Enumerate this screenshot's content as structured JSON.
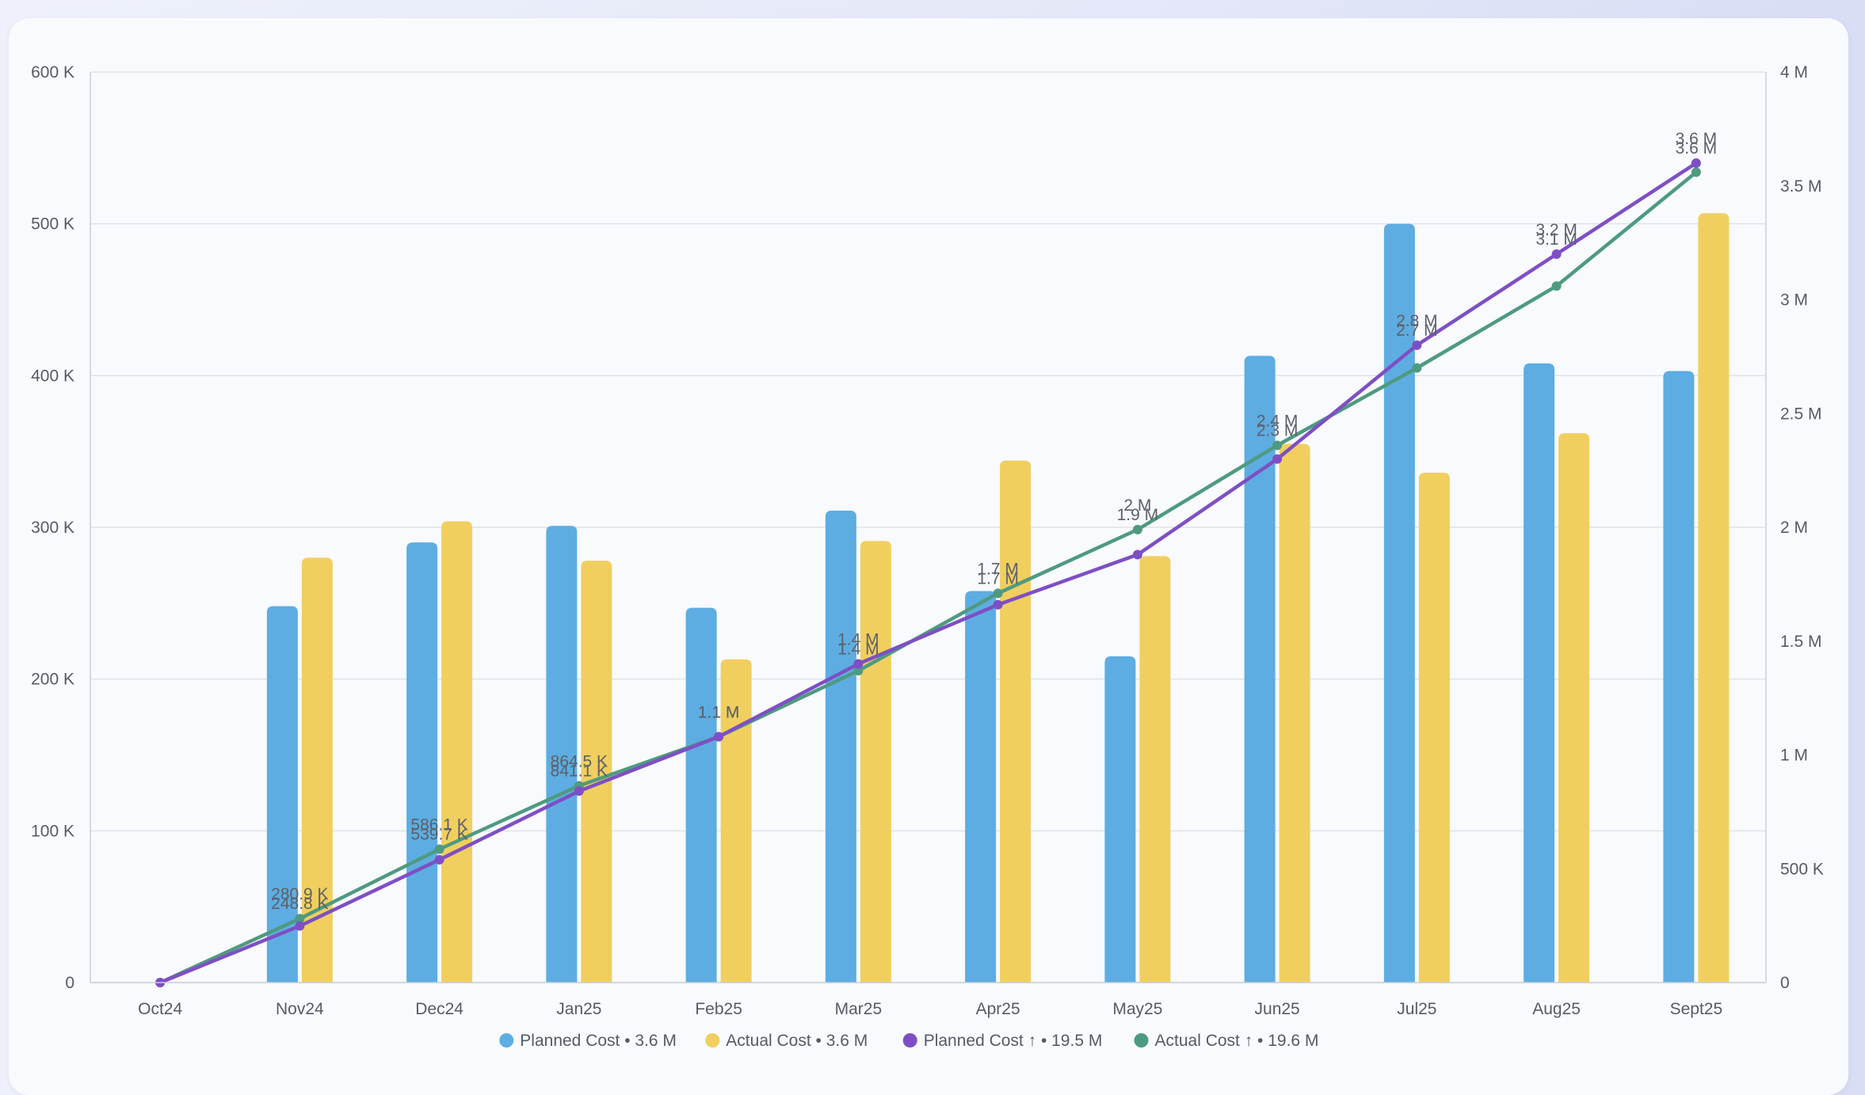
{
  "chart_data": {
    "type": "bar+line",
    "categories": [
      "Oct24",
      "Nov24",
      "Dec24",
      "Jan25",
      "Feb25",
      "Mar25",
      "Apr25",
      "May25",
      "Jun25",
      "Jul25",
      "Aug25",
      "Sept25"
    ],
    "left_axis": {
      "ylim": [
        0,
        600000
      ],
      "ticks": [
        "0",
        "100 K",
        "200 K",
        "300 K",
        "400 K",
        "500 K",
        "600 K"
      ]
    },
    "right_axis": {
      "ylim": [
        0,
        4000000
      ],
      "ticks": [
        "0",
        "500 K",
        "1 M",
        "1.5 M",
        "2 M",
        "2.5 M",
        "3 M",
        "3.5 M",
        "4 M"
      ]
    },
    "grid": true,
    "legend_position": "bottom-center",
    "series": [
      {
        "name": "Planned Cost",
        "summary": "3.6 M",
        "type": "bar",
        "axis": "left",
        "color": "#5dade2",
        "values": [
          0,
          248000,
          290000,
          301000,
          247000,
          311000,
          258000,
          215000,
          413000,
          500000,
          408000,
          403000
        ]
      },
      {
        "name": "Actual Cost",
        "summary": "3.6 M",
        "type": "bar",
        "axis": "left",
        "color": "#f0cf5f",
        "values": [
          0,
          280000,
          304000,
          278000,
          213000,
          291000,
          344000,
          281000,
          355000,
          336000,
          362000,
          507000
        ]
      },
      {
        "name": "Planned Cost ↑",
        "summary": "19.5 M",
        "type": "line",
        "axis": "right",
        "color": "#7e4fc4",
        "values": [
          0,
          248800,
          539700,
          841100,
          1080000,
          1400000,
          1660000,
          1880000,
          2300000,
          2800000,
          3200000,
          3600000
        ],
        "labels": [
          "",
          "248.8 K",
          "539.7 K",
          "841.1 K",
          "1.1 M",
          "1.4 M",
          "1.7 M",
          "1.9 M",
          "2.3 M",
          "2.8 M",
          "3.2 M",
          "3.6 M"
        ]
      },
      {
        "name": "Actual Cost ↑",
        "summary": "19.6 M",
        "type": "line",
        "axis": "right",
        "color": "#4e9a80",
        "values": [
          0,
          280900,
          586100,
          864500,
          1080000,
          1370000,
          1710000,
          1990000,
          2360000,
          2700000,
          3060000,
          3560000
        ],
        "labels": [
          "",
          "280.9 K",
          "586.1 K",
          "864.5 K",
          "1.1 M",
          "1.4 M",
          "1.7 M",
          "2 M",
          "2.4 M",
          "2.7 M",
          "3.1 M",
          "3.6 M"
        ]
      }
    ]
  }
}
